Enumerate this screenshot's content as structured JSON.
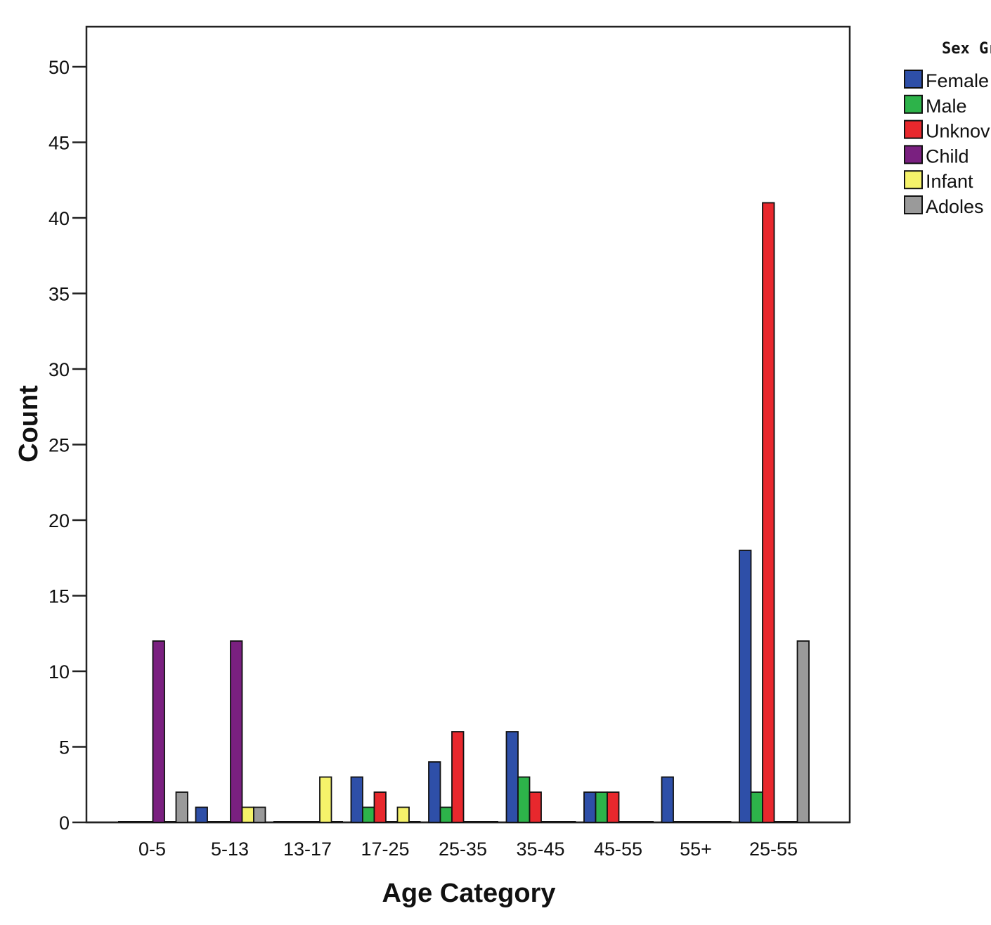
{
  "chart_data": {
    "type": "bar",
    "title": "",
    "xlabel": "Age Category",
    "ylabel": "Count",
    "ylim": [
      0,
      50
    ],
    "ytick_step": 5,
    "grid": false,
    "legend_title": "Sex Gr",
    "legend_placement": "top-right",
    "categories": [
      "0-5",
      "5-13",
      "13-17",
      "17-25",
      "25-35",
      "35-45",
      "45-55",
      "55+",
      "25-55"
    ],
    "series": [
      {
        "name": "Female",
        "color": "#2e4fa8",
        "values": [
          0,
          1,
          0,
          3,
          4,
          6,
          2,
          3,
          18
        ]
      },
      {
        "name": "Male",
        "color": "#2db34a",
        "values": [
          0,
          0,
          0,
          1,
          1,
          3,
          2,
          0,
          2
        ]
      },
      {
        "name": "Unknov",
        "color": "#e8282d",
        "values": [
          0,
          0,
          0,
          2,
          6,
          2,
          2,
          0,
          41
        ]
      },
      {
        "name": "Child",
        "color": "#7a2080",
        "values": [
          12,
          12,
          0,
          0,
          0,
          0,
          0,
          0,
          0
        ]
      },
      {
        "name": "Infant",
        "color": "#f5f26a",
        "values": [
          0,
          1,
          3,
          1,
          0,
          0,
          0,
          0,
          0
        ]
      },
      {
        "name": "Adoles",
        "color": "#9a9a9a",
        "values": [
          2,
          1,
          0,
          0,
          0,
          0,
          0,
          0,
          12
        ]
      }
    ]
  }
}
